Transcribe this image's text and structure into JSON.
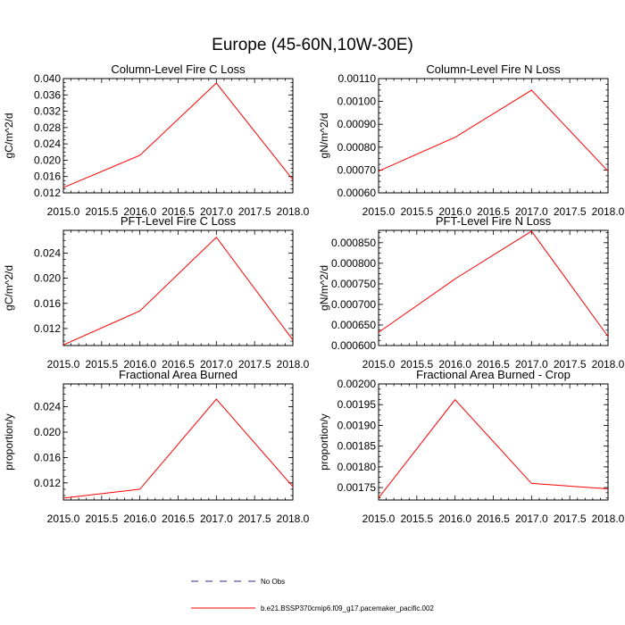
{
  "figure_title": "Europe (45-60N,10W-30E)",
  "legend": {
    "entries": [
      {
        "label": "No Obs",
        "color": "#2b2b8a",
        "dash": true
      },
      {
        "label": "b.e21.BSSP370cmip6.f09_g17.pacemaker_pacific.002",
        "color": "#ff0000",
        "dash": false
      }
    ]
  },
  "chart_data": [
    {
      "type": "line",
      "title": "Column-Level Fire C Loss",
      "ylabel": "gC/m^2/d",
      "x": [
        2015.0,
        2016.0,
        2017.0,
        2018.0
      ],
      "xlim": [
        2015.0,
        2018.0
      ],
      "xticks": [
        "2015.0",
        "2015.5",
        "2016.0",
        "2016.5",
        "2017.0",
        "2017.5",
        "2018.0"
      ],
      "ylim": [
        0.012,
        0.04
      ],
      "yticks": [
        "0.012",
        "0.016",
        "0.020",
        "0.024",
        "0.028",
        "0.032",
        "0.036",
        "0.040"
      ],
      "series": [
        {
          "values": [
            0.0133,
            0.0212,
            0.0389,
            0.0152
          ],
          "color": "#ff0000"
        }
      ]
    },
    {
      "type": "line",
      "title": "Column-Level Fire N Loss",
      "ylabel": "gN/m^2/d",
      "x": [
        2015.0,
        2016.0,
        2017.0,
        2018.0
      ],
      "xlim": [
        2015.0,
        2018.0
      ],
      "xticks": [
        "2015.0",
        "2015.5",
        "2016.0",
        "2016.5",
        "2017.0",
        "2017.5",
        "2018.0"
      ],
      "ylim": [
        0.0006,
        0.0011
      ],
      "yticks": [
        "0.00060",
        "0.00070",
        "0.00080",
        "0.00090",
        "0.00100",
        "0.00110"
      ],
      "series": [
        {
          "values": [
            0.000695,
            0.000843,
            0.001049,
            0.000695
          ],
          "color": "#ff0000"
        }
      ]
    },
    {
      "type": "line",
      "title": "PFT-Level Fire C Loss",
      "ylabel": "gC/m^2/d",
      "x": [
        2015.0,
        2016.0,
        2017.0,
        2018.0
      ],
      "xlim": [
        2015.0,
        2018.0
      ],
      "xticks": [
        "2015.0",
        "2015.5",
        "2016.0",
        "2016.5",
        "2017.0",
        "2017.5",
        "2018.0"
      ],
      "ylim": [
        0.0093,
        0.0276
      ],
      "yticks": [
        "0.012",
        "0.016",
        "0.020",
        "0.024"
      ],
      "series": [
        {
          "values": [
            0.0094,
            0.0148,
            0.0265,
            0.0102
          ],
          "color": "#ff0000"
        }
      ]
    },
    {
      "type": "line",
      "title": "PFT-Level Fire N Loss",
      "ylabel": "gN/m^2/d",
      "x": [
        2015.0,
        2016.0,
        2017.0,
        2018.0
      ],
      "xlim": [
        2015.0,
        2018.0
      ],
      "xticks": [
        "2015.0",
        "2015.5",
        "2016.0",
        "2016.5",
        "2017.0",
        "2017.5",
        "2018.0"
      ],
      "ylim": [
        0.0006,
        0.00088
      ],
      "yticks": [
        "0.000600",
        "0.000650",
        "0.000700",
        "0.000750",
        "0.000800",
        "0.000850"
      ],
      "series": [
        {
          "values": [
            0.000632,
            0.000762,
            0.000878,
            0.000622
          ],
          "color": "#ff0000"
        }
      ]
    },
    {
      "type": "line",
      "title": "Fractional Area Burned",
      "ylabel": "proportion/y",
      "x": [
        2015.0,
        2016.0,
        2017.0,
        2018.0
      ],
      "xlim": [
        2015.0,
        2018.0
      ],
      "xticks": [
        "2015.0",
        "2015.5",
        "2016.0",
        "2016.5",
        "2017.0",
        "2017.5",
        "2018.0"
      ],
      "ylim": [
        0.0093,
        0.0276
      ],
      "yticks": [
        "0.012",
        "0.016",
        "0.020",
        "0.024"
      ],
      "series": [
        {
          "values": [
            0.0096,
            0.011,
            0.0252,
            0.0114
          ],
          "color": "#ff0000"
        }
      ]
    },
    {
      "type": "line",
      "title": "Fractional Area Burned - Crop",
      "ylabel": "proportion/y",
      "x": [
        2015.0,
        2016.0,
        2017.0,
        2018.0
      ],
      "xlim": [
        2015.0,
        2018.0
      ],
      "xticks": [
        "2015.0",
        "2015.5",
        "2016.0",
        "2016.5",
        "2017.0",
        "2017.5",
        "2018.0"
      ],
      "ylim": [
        0.00172,
        0.002
      ],
      "yticks": [
        "0.00175",
        "0.00180",
        "0.00185",
        "0.00190",
        "0.00195",
        "0.00200"
      ],
      "series": [
        {
          "values": [
            0.001725,
            0.001962,
            0.00176,
            0.001747
          ],
          "color": "#ff0000"
        }
      ]
    }
  ]
}
